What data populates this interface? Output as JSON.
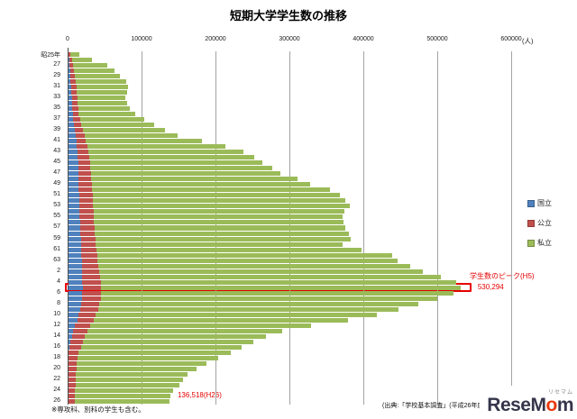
{
  "title": "短期大学学生数の推移",
  "axis": {
    "unit_label": "(人)",
    "x_tick_labels": [
      "0",
      "100000",
      "200000",
      "300000",
      "400000",
      "500000",
      "600000"
    ],
    "xmax": 600000
  },
  "legend": [
    {
      "label": "国立",
      "color": "#4f81bd"
    },
    {
      "label": "公立",
      "color": "#c0504d"
    },
    {
      "label": "私立",
      "color": "#9bbb59"
    }
  ],
  "annotations": {
    "peak_label": "学生数のピーク(H5)",
    "peak_value": "530,294",
    "latest_value": "136,518(H26)"
  },
  "footnotes": {
    "left": "※専攻科、別科の学生も含む。",
    "right": "(出典:「学校基本調査」(平成26年度は速報値))"
  },
  "logo": {
    "kana": "リセマム",
    "part1": "ReseM",
    "accent": "o",
    "part2": "m"
  },
  "chart_data": {
    "type": "bar",
    "orientation": "horizontal",
    "stacked": true,
    "title": "短期大学学生数の推移",
    "unit": "人",
    "xlim": [
      0,
      600000
    ],
    "grid": true,
    "legend_position": "right",
    "y_tick_labels": [
      "昭25年",
      "27",
      "29",
      "31",
      "33",
      "35",
      "37",
      "39",
      "41",
      "43",
      "45",
      "47",
      "49",
      "51",
      "53",
      "55",
      "57",
      "59",
      "61",
      "63",
      "2",
      "4",
      "6",
      "8",
      "10",
      "12",
      "14",
      "16",
      "18",
      "20",
      "22",
      "24",
      "26"
    ],
    "start_year": 1950,
    "peak": {
      "era_label": "H5",
      "year": 1993,
      "total": 530294
    },
    "latest": {
      "era_label": "H26",
      "year": 2014,
      "total": 136518
    },
    "series": [
      {
        "name": "国立",
        "color": "#4f81bd",
        "values": [
          300,
          800,
          1500,
          2000,
          2500,
          3000,
          3500,
          4000,
          4500,
          4800,
          5000,
          5500,
          6500,
          7500,
          8500,
          9500,
          10500,
          11500,
          12000,
          12500,
          13000,
          13200,
          13400,
          13600,
          13800,
          14000,
          14200,
          14400,
          14600,
          14800,
          15000,
          15400,
          15800,
          16200,
          16600,
          17000,
          17300,
          17600,
          17800,
          18000,
          18200,
          18600,
          18900,
          19000,
          18800,
          18500,
          17500,
          16000,
          14000,
          12000,
          9000,
          6500,
          4500,
          2500,
          1200,
          0,
          0,
          0,
          0,
          0,
          0,
          0,
          0,
          0,
          0
        ]
      },
      {
        "name": "公立",
        "color": "#c0504d",
        "values": [
          1800,
          3500,
          5000,
          5800,
          6400,
          7000,
          7200,
          7300,
          7400,
          7700,
          8000,
          8500,
          9200,
          10000,
          11000,
          12000,
          13000,
          14000,
          15000,
          15500,
          16000,
          16300,
          16600,
          17000,
          17500,
          18000,
          18200,
          18400,
          18600,
          18800,
          19000,
          19200,
          19400,
          19600,
          19800,
          20000,
          20600,
          21200,
          21800,
          22400,
          23000,
          23800,
          24500,
          25000,
          25200,
          25000,
          24500,
          24000,
          23000,
          22000,
          20000,
          19000,
          18000,
          17000,
          15500,
          13000,
          12000,
          11200,
          10600,
          10000,
          9500,
          9200,
          8800,
          8400,
          8000
        ]
      },
      {
        "name": "私立",
        "color": "#9bbb59",
        "values": [
          12998,
          27700,
          45500,
          54200,
          61100,
          67885,
          69300,
          67700,
          65100,
          66500,
          70457,
          76000,
          86300,
          98500,
          110500,
          126063,
          156500,
          186500,
          209000,
          223000,
          233819,
          245756,
          256264,
          279224,
          295870,
          321782,
          334142,
          341309,
          347049,
          340102,
          337124,
          337806,
          338947,
          343625,
          345757,
          334095,
          358555,
          398841,
          405208,
          421449,
          438189,
          461687,
          481138,
          486294,
          476638,
          455016,
          431279,
          406750,
          379825,
          343852,
          298680,
          263698,
          244586,
          230562,
          217049,
          206355,
          190254,
          175467,
          162126,
          150976,
          145773,
          140807,
          133170,
          129860,
          128518
        ]
      }
    ]
  }
}
